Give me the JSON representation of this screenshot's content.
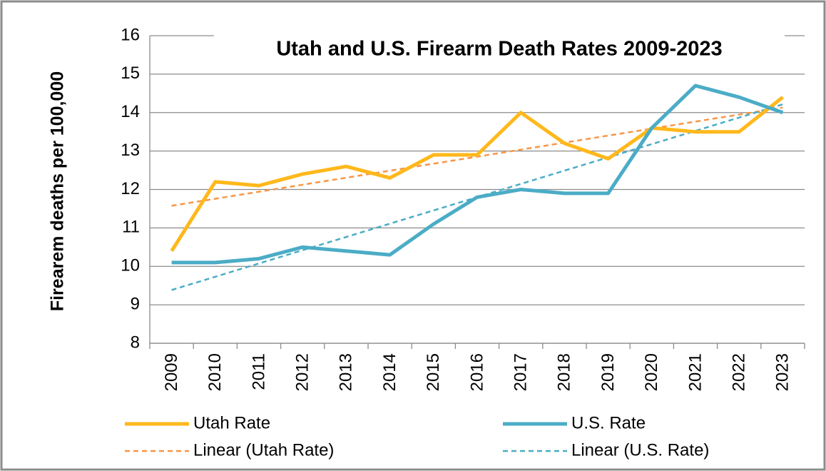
{
  "chart_data": {
    "type": "line",
    "title": "Utah and U.S. Firearm Death Rates 2009-2023",
    "y_label": "Firearem deaths per 100,000",
    "categories": [
      "2009",
      "2010",
      "2011",
      "2012",
      "2013",
      "2014",
      "2015",
      "2016",
      "2017",
      "2018",
      "2019",
      "2020",
      "2021",
      "2022",
      "2023"
    ],
    "series": [
      {
        "name": "Utah Rate",
        "color": "#ffb81c",
        "values": [
          10.4,
          12.2,
          12.1,
          12.4,
          12.6,
          12.3,
          12.9,
          12.9,
          14.0,
          13.2,
          12.8,
          13.6,
          13.5,
          13.5,
          14.4
        ]
      },
      {
        "name": "U.S. Rate",
        "color": "#4bacc6",
        "values": [
          10.1,
          10.1,
          10.2,
          10.5,
          10.4,
          10.3,
          11.1,
          11.8,
          12.0,
          11.9,
          11.9,
          13.6,
          14.7,
          14.4,
          14.0
        ]
      }
    ],
    "trendlines": [
      {
        "name": "Linear (Utah Rate)",
        "color": "#f79646",
        "type": "linear"
      },
      {
        "name": "Linear (U.S. Rate)",
        "color": "#4bacc6",
        "type": "linear"
      }
    ],
    "ylim": [
      8,
      16
    ],
    "yticks": [
      8,
      9,
      10,
      11,
      12,
      13,
      14,
      15,
      16
    ],
    "grid": true,
    "legend": "bottom"
  }
}
